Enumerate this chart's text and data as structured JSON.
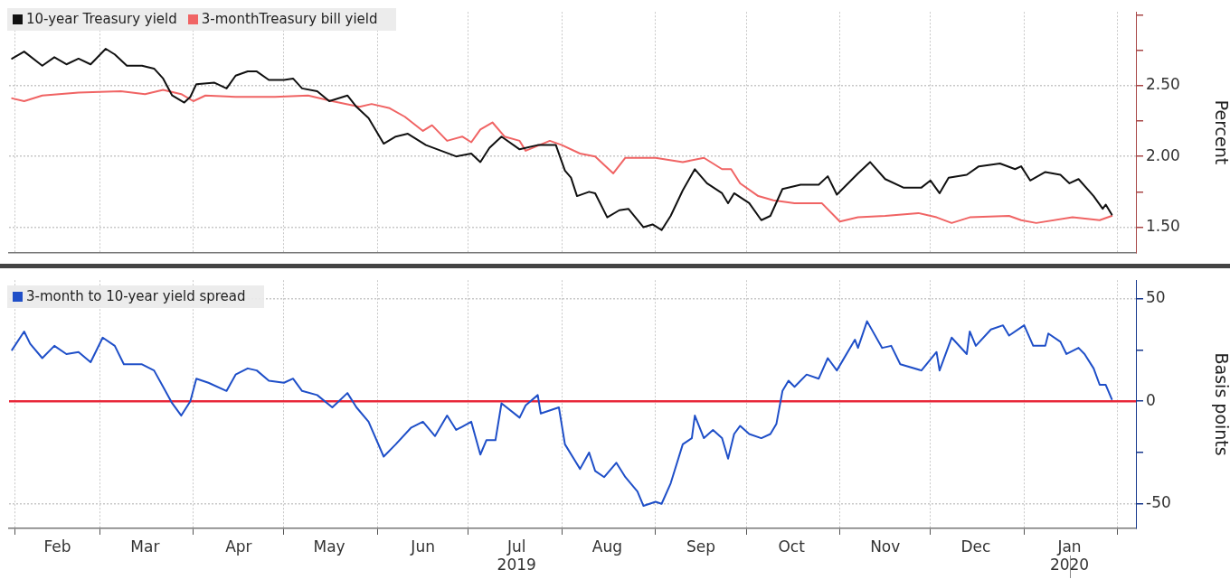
{
  "chart_data": [
    {
      "type": "line",
      "ylabel": "Percent",
      "legend": "top left",
      "grid": true,
      "marker": "none",
      "line_style": "solid",
      "tick_labels": "y",
      "xlim": [
        "2019-01-30",
        "2020-02-07"
      ],
      "xticks": [
        {
          "value": "2019-02-01",
          "label": null
        },
        {
          "value": "2019-03-01",
          "label": null
        },
        {
          "value": "2019-04-01",
          "label": null
        },
        {
          "value": "2019-05-01",
          "label": null
        },
        {
          "value": "2019-06-01",
          "label": null
        },
        {
          "value": "2019-07-01",
          "label": null
        },
        {
          "value": "2019-08-01",
          "label": null
        },
        {
          "value": "2019-09-01",
          "label": null
        },
        {
          "value": "2019-10-01",
          "label": null
        },
        {
          "value": "2019-11-01",
          "label": null
        },
        {
          "value": "2019-12-01",
          "label": null
        },
        {
          "value": "2020-01-01",
          "label": null
        },
        {
          "value": "2020-02-01",
          "label": null
        }
      ],
      "ylim": [
        1.32,
        3.02
      ],
      "yticks": [
        {
          "value": 1.5,
          "label": "1.50"
        },
        {
          "value": 1.75,
          "label": null
        },
        {
          "value": 2.0,
          "label": "2.00"
        },
        {
          "value": 2.25,
          "label": null
        },
        {
          "value": 2.5,
          "label": "2.50"
        },
        {
          "value": 2.75,
          "label": null
        },
        {
          "value": 3.0,
          "label": null
        }
      ],
      "series": [
        {
          "name": "10-year Treasury yield",
          "color": "#111111",
          "x": [
            "2019-01-31",
            "2019-02-04",
            "2019-02-10",
            "2019-02-14",
            "2019-02-18",
            "2019-02-22",
            "2019-02-26",
            "2019-03-03",
            "2019-03-06",
            "2019-03-10",
            "2019-03-15",
            "2019-03-19",
            "2019-03-22",
            "2019-03-25",
            "2019-03-29",
            "2019-03-31",
            "2019-04-02",
            "2019-04-08",
            "2019-04-12",
            "2019-04-15",
            "2019-04-19",
            "2019-04-22",
            "2019-04-26",
            "2019-05-01",
            "2019-05-04",
            "2019-05-07",
            "2019-05-12",
            "2019-05-16",
            "2019-05-22",
            "2019-05-25",
            "2019-05-29",
            "2019-06-03",
            "2019-06-07",
            "2019-06-11",
            "2019-06-17",
            "2019-06-22",
            "2019-06-27",
            "2019-07-02",
            "2019-07-05",
            "2019-07-08",
            "2019-07-12",
            "2019-07-18",
            "2019-07-24",
            "2019-07-30",
            "2019-08-02",
            "2019-08-04",
            "2019-08-06",
            "2019-08-10",
            "2019-08-12",
            "2019-08-16",
            "2019-08-20",
            "2019-08-23",
            "2019-08-28",
            "2019-08-31",
            "2019-09-03",
            "2019-09-06",
            "2019-09-10",
            "2019-09-14",
            "2019-09-18",
            "2019-09-23",
            "2019-09-25",
            "2019-09-27",
            "2019-10-02",
            "2019-10-06",
            "2019-10-09",
            "2019-10-13",
            "2019-10-19",
            "2019-10-25",
            "2019-10-28",
            "2019-10-31",
            "2019-11-07",
            "2019-11-11",
            "2019-11-16",
            "2019-11-22",
            "2019-11-28",
            "2019-12-01",
            "2019-12-04",
            "2019-12-07",
            "2019-12-13",
            "2019-12-17",
            "2019-12-24",
            "2019-12-29",
            "2019-12-31",
            "2020-01-03",
            "2020-01-08",
            "2020-01-13",
            "2020-01-16",
            "2020-01-19",
            "2020-01-24",
            "2020-01-27",
            "2020-01-28",
            "2020-01-30"
          ],
          "values": [
            2.69,
            2.74,
            2.64,
            2.7,
            2.65,
            2.69,
            2.65,
            2.76,
            2.72,
            2.64,
            2.64,
            2.62,
            2.55,
            2.43,
            2.38,
            2.42,
            2.51,
            2.52,
            2.48,
            2.57,
            2.6,
            2.6,
            2.54,
            2.54,
            2.55,
            2.48,
            2.46,
            2.39,
            2.43,
            2.35,
            2.27,
            2.09,
            2.14,
            2.16,
            2.08,
            2.04,
            2.0,
            2.02,
            1.96,
            2.06,
            2.14,
            2.05,
            2.08,
            2.08,
            1.9,
            1.85,
            1.72,
            1.75,
            1.74,
            1.57,
            1.62,
            1.63,
            1.5,
            1.52,
            1.48,
            1.58,
            1.76,
            1.91,
            1.81,
            1.74,
            1.67,
            1.74,
            1.67,
            1.55,
            1.58,
            1.77,
            1.8,
            1.8,
            1.86,
            1.73,
            1.88,
            1.96,
            1.84,
            1.78,
            1.78,
            1.83,
            1.74,
            1.85,
            1.87,
            1.93,
            1.95,
            1.91,
            1.93,
            1.83,
            1.89,
            1.87,
            1.81,
            1.84,
            1.72,
            1.63,
            1.66,
            1.59
          ]
        },
        {
          "name": "3-monthTreasury bill yield",
          "color": "#f06464",
          "x": [
            "2019-01-31",
            "2019-02-04",
            "2019-02-10",
            "2019-02-22",
            "2019-03-08",
            "2019-03-16",
            "2019-03-22",
            "2019-03-28",
            "2019-04-01",
            "2019-04-05",
            "2019-04-15",
            "2019-04-28",
            "2019-05-09",
            "2019-05-17",
            "2019-05-26",
            "2019-05-30",
            "2019-06-05",
            "2019-06-10",
            "2019-06-16",
            "2019-06-19",
            "2019-06-24",
            "2019-06-29",
            "2019-07-02",
            "2019-07-05",
            "2019-07-09",
            "2019-07-13",
            "2019-07-18",
            "2019-07-20",
            "2019-07-28",
            "2019-08-01",
            "2019-08-07",
            "2019-08-12",
            "2019-08-18",
            "2019-08-22",
            "2019-08-26",
            "2019-09-01",
            "2019-09-10",
            "2019-09-17",
            "2019-09-23",
            "2019-09-26",
            "2019-09-29",
            "2019-10-05",
            "2019-10-10",
            "2019-10-17",
            "2019-10-26",
            "2019-11-01",
            "2019-11-07",
            "2019-11-16",
            "2019-11-27",
            "2019-12-03",
            "2019-12-08",
            "2019-12-14",
            "2019-12-27",
            "2019-12-31",
            "2020-01-05",
            "2020-01-17",
            "2020-01-26",
            "2020-01-30"
          ],
          "values": [
            2.41,
            2.39,
            2.43,
            2.45,
            2.46,
            2.44,
            2.47,
            2.44,
            2.39,
            2.43,
            2.42,
            2.42,
            2.43,
            2.39,
            2.35,
            2.37,
            2.34,
            2.28,
            2.18,
            2.22,
            2.11,
            2.14,
            2.1,
            2.19,
            2.24,
            2.14,
            2.11,
            2.04,
            2.11,
            2.08,
            2.02,
            2.0,
            1.88,
            1.99,
            1.99,
            1.99,
            1.96,
            1.99,
            1.91,
            1.91,
            1.81,
            1.72,
            1.69,
            1.67,
            1.67,
            1.54,
            1.57,
            1.58,
            1.6,
            1.57,
            1.53,
            1.57,
            1.58,
            1.55,
            1.53,
            1.57,
            1.55,
            1.58
          ]
        }
      ]
    },
    {
      "type": "line",
      "ylabel": "Basis points",
      "legend": "top left",
      "grid": true,
      "marker": "none",
      "line_style": "solid",
      "xlim": [
        "2019-01-30",
        "2020-02-07"
      ],
      "xticks": [
        {
          "value": "2019-02-01",
          "label": null
        },
        {
          "value": "2019-02-15",
          "label": "Feb"
        },
        {
          "value": "2019-03-01",
          "label": null
        },
        {
          "value": "2019-03-16",
          "label": "Mar"
        },
        {
          "value": "2019-04-01",
          "label": null
        },
        {
          "value": "2019-04-16",
          "label": "Apr"
        },
        {
          "value": "2019-05-01",
          "label": null
        },
        {
          "value": "2019-05-16",
          "label": "May"
        },
        {
          "value": "2019-06-01",
          "label": null
        },
        {
          "value": "2019-06-16",
          "label": "Jun"
        },
        {
          "value": "2019-07-01",
          "label": null
        },
        {
          "value": "2019-07-17",
          "label": "Jul\n2019"
        },
        {
          "value": "2019-08-01",
          "label": null
        },
        {
          "value": "2019-08-16",
          "label": "Aug"
        },
        {
          "value": "2019-09-01",
          "label": null
        },
        {
          "value": "2019-09-16",
          "label": "Sep"
        },
        {
          "value": "2019-10-01",
          "label": null
        },
        {
          "value": "2019-10-16",
          "label": "Oct"
        },
        {
          "value": "2019-11-01",
          "label": null
        },
        {
          "value": "2019-11-16",
          "label": "Nov"
        },
        {
          "value": "2019-12-01",
          "label": null
        },
        {
          "value": "2019-12-16",
          "label": "Dec"
        },
        {
          "value": "2020-01-01",
          "label": null
        },
        {
          "value": "2020-01-16",
          "label": "Jan\n2020"
        },
        {
          "value": "2020-02-01",
          "label": null
        }
      ],
      "ylim": [
        -62,
        59
      ],
      "yticks": [
        -50,
        {
          "value": -25,
          "label": null
        },
        0,
        {
          "value": 25,
          "label": null
        },
        50
      ],
      "ref_lines": [
        {
          "axis": "y",
          "value": 0,
          "color": "#e8283a"
        }
      ],
      "series": [
        {
          "name": "3-month to 10-year yield spread",
          "color": "#1f4fc8",
          "x": [
            "2019-01-31",
            "2019-02-04",
            "2019-02-06",
            "2019-02-10",
            "2019-02-14",
            "2019-02-18",
            "2019-02-22",
            "2019-02-26",
            "2019-03-02",
            "2019-03-06",
            "2019-03-09",
            "2019-03-15",
            "2019-03-19",
            "2019-03-22",
            "2019-03-25",
            "2019-03-28",
            "2019-03-31",
            "2019-04-02",
            "2019-04-06",
            "2019-04-12",
            "2019-04-15",
            "2019-04-19",
            "2019-04-22",
            "2019-04-26",
            "2019-05-01",
            "2019-05-04",
            "2019-05-07",
            "2019-05-12",
            "2019-05-17",
            "2019-05-22",
            "2019-05-25",
            "2019-05-29",
            "2019-06-03",
            "2019-06-07",
            "2019-06-12",
            "2019-06-16",
            "2019-06-20",
            "2019-06-24",
            "2019-06-27",
            "2019-07-02",
            "2019-07-05",
            "2019-07-07",
            "2019-07-10",
            "2019-07-12",
            "2019-07-18",
            "2019-07-20",
            "2019-07-24",
            "2019-07-25",
            "2019-07-31",
            "2019-08-02",
            "2019-08-07",
            "2019-08-10",
            "2019-08-12",
            "2019-08-15",
            "2019-08-19",
            "2019-08-22",
            "2019-08-26",
            "2019-08-28",
            "2019-09-01",
            "2019-09-03",
            "2019-09-06",
            "2019-09-10",
            "2019-09-13",
            "2019-09-14",
            "2019-09-17",
            "2019-09-20",
            "2019-09-23",
            "2019-09-25",
            "2019-09-27",
            "2019-09-29",
            "2019-10-02",
            "2019-10-06",
            "2019-10-09",
            "2019-10-11",
            "2019-10-13",
            "2019-10-15",
            "2019-10-17",
            "2019-10-21",
            "2019-10-25",
            "2019-10-28",
            "2019-10-31",
            "2019-11-06",
            "2019-11-07",
            "2019-11-10",
            "2019-11-15",
            "2019-11-18",
            "2019-11-21",
            "2019-11-28",
            "2019-12-03",
            "2019-12-04",
            "2019-12-08",
            "2019-12-13",
            "2019-12-14",
            "2019-12-16",
            "2019-12-21",
            "2019-12-25",
            "2019-12-27",
            "2020-01-01",
            "2020-01-04",
            "2020-01-08",
            "2020-01-09",
            "2020-01-13",
            "2020-01-15",
            "2020-01-19",
            "2020-01-21",
            "2020-01-24",
            "2020-01-26",
            "2020-01-28",
            "2020-01-30"
          ],
          "values": [
            25,
            34,
            28,
            21,
            27,
            23,
            24,
            19,
            31,
            27,
            18,
            18,
            15,
            7,
            -1,
            -7,
            0,
            11,
            9,
            5,
            13,
            16,
            15,
            10,
            9,
            11,
            5,
            3,
            -3,
            4,
            -3,
            -10,
            -27,
            -21,
            -13,
            -10,
            -17,
            -7,
            -14,
            -10,
            -26,
            -19,
            -19,
            -1,
            -8,
            -2,
            3,
            -6,
            -3,
            -21,
            -33,
            -25,
            -34,
            -37,
            -30,
            -37,
            -44,
            -51,
            -49,
            -50,
            -40,
            -21,
            -18,
            -7,
            -18,
            -14,
            -18,
            -28,
            -16,
            -12,
            -16,
            -18,
            -16,
            -11,
            5,
            10,
            7,
            13,
            11,
            21,
            15,
            30,
            26,
            39,
            26,
            27,
            18,
            15,
            24,
            15,
            31,
            23,
            34,
            27,
            35,
            37,
            32,
            37,
            27,
            27,
            33,
            29,
            23,
            26,
            23,
            16,
            8,
            8,
            1
          ]
        }
      ]
    }
  ]
}
